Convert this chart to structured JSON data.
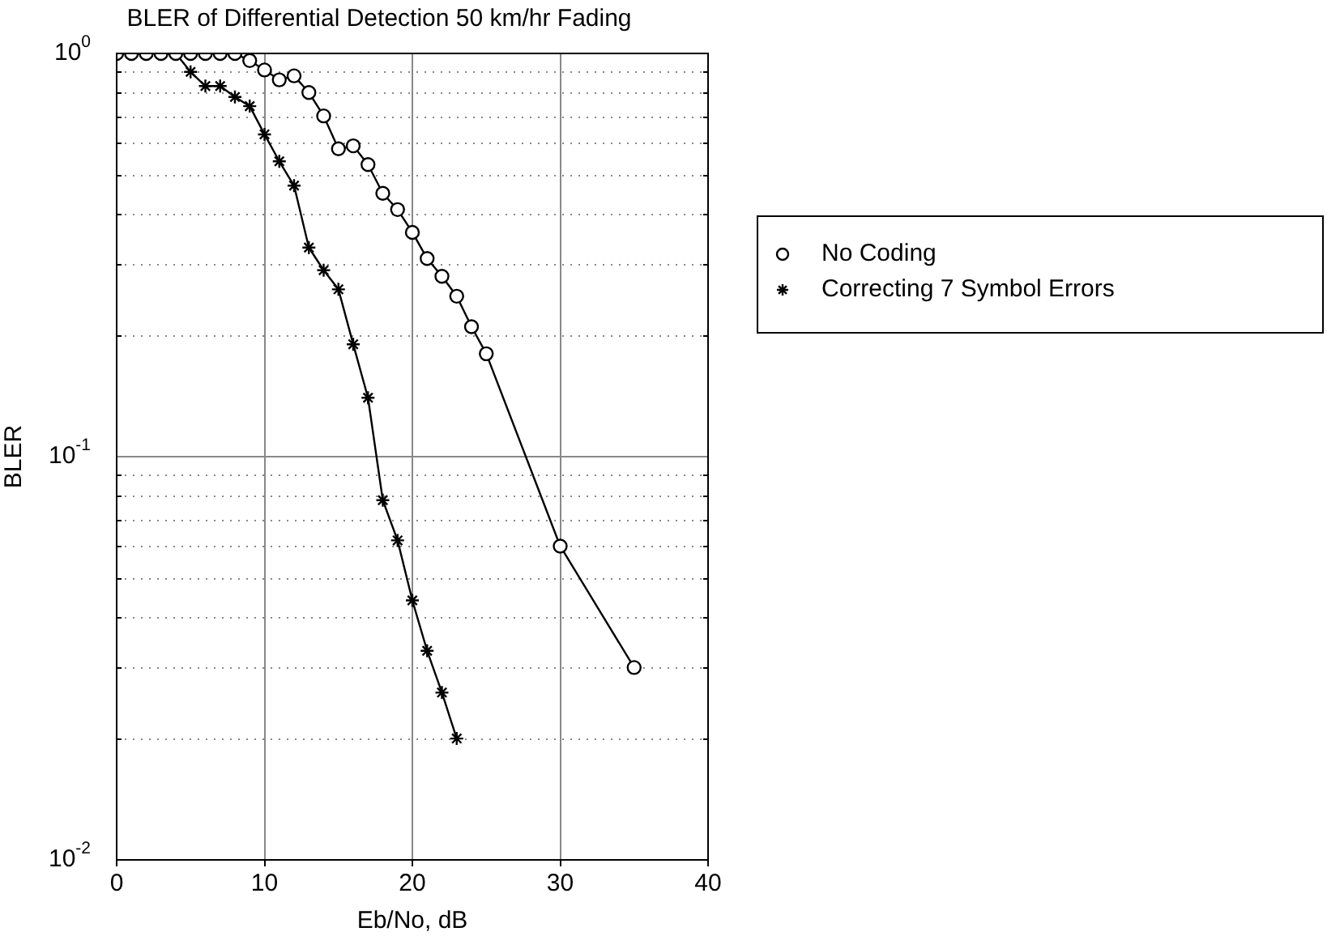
{
  "chart_data": {
    "type": "line",
    "title": "BLER of Differential Detection 50 km/hr Fading",
    "xlabel": "Eb/No, dB",
    "ylabel": "BLER",
    "series": [
      {
        "name": "No Coding",
        "color": "#000000",
        "marker": "circle",
        "x": [
          0,
          1,
          2,
          3,
          4,
          5,
          6,
          7,
          8,
          9,
          10,
          11,
          12,
          13,
          14,
          15,
          16,
          17,
          18,
          19,
          20,
          21,
          22,
          23,
          24,
          25,
          30,
          35
        ],
        "values": [
          1,
          1,
          1,
          1,
          1,
          1,
          1,
          1,
          1,
          0.96,
          0.91,
          0.86,
          0.88,
          0.8,
          0.7,
          0.58,
          0.59,
          0.53,
          0.45,
          0.41,
          0.36,
          0.31,
          0.28,
          0.25,
          0.21,
          0.18,
          0.06,
          0.03
        ]
      },
      {
        "name": "Correcting 7 Symbol Errors",
        "color": "#000000",
        "marker": "cross",
        "x": [
          0,
          1,
          2,
          3,
          4,
          5,
          6,
          7,
          8,
          9,
          10,
          11,
          12,
          13,
          14,
          15,
          16,
          17,
          18,
          19,
          20,
          21,
          22,
          23
        ],
        "values": [
          1,
          1,
          1,
          1,
          1,
          0.9,
          0.83,
          0.83,
          0.78,
          0.74,
          0.63,
          0.54,
          0.47,
          0.33,
          0.29,
          0.26,
          0.19,
          0.14,
          0.078,
          0.062,
          0.044,
          0.033,
          0.026,
          0.02
        ]
      }
    ],
    "xlim": [
      0,
      40
    ],
    "xticks": [
      0,
      10,
      20,
      30,
      40
    ],
    "ylim": [
      0.01,
      1
    ],
    "yticks": [
      {
        "value": 0.01,
        "label": "10$^{-2}$"
      },
      {
        "value": 0.1,
        "label": "10$^{-1}$"
      },
      {
        "value": 1,
        "label": "10$^{0}$"
      }
    ],
    "log": "y",
    "grid": true,
    "legend": "right",
    "line_style": "solid"
  }
}
